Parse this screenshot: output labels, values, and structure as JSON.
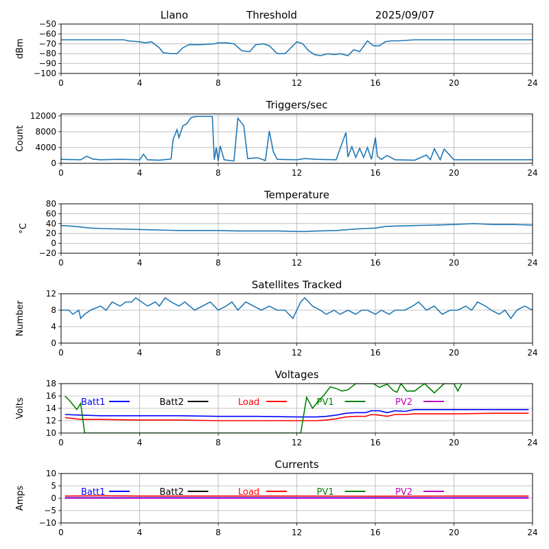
{
  "header": {
    "station": "Llano",
    "metric": "Threshold",
    "date": "2025/09/07"
  },
  "legend_labels": [
    "Batt1",
    "Batt2",
    "Load",
    "PV1",
    "PV2"
  ],
  "legend_colors": [
    "#0000ff",
    "#000000",
    "#ff0000",
    "#008000",
    "#bf00bf"
  ],
  "chart_data": [
    {
      "type": "line",
      "title": "",
      "ylabel": "dBm",
      "xlim": [
        0,
        24
      ],
      "ylim": [
        -100,
        -50
      ],
      "xticks": [
        "0",
        "4",
        "8",
        "12",
        "16",
        "20",
        "24"
      ],
      "yticks": [
        "−100",
        "−90",
        "−80",
        "−70",
        "−60",
        "−50"
      ],
      "grid": true,
      "series": [
        {
          "color": "#1f77b4",
          "x": [
            0,
            3.2,
            3.4,
            4,
            4.3,
            4.6,
            5,
            5.2,
            5.6,
            5.9,
            6.2,
            6.5,
            7,
            7.8,
            8,
            8.4,
            8.8,
            9.2,
            9.6,
            9.9,
            10.3,
            10.6,
            11,
            11.4,
            11.6,
            12,
            12.3,
            12.6,
            12.9,
            13.2,
            13.6,
            13.9,
            14.2,
            14.6,
            14.9,
            15.2,
            15.6,
            15.9,
            16.2,
            16.5,
            16.8,
            17.2,
            18,
            20,
            24
          ],
          "y": [
            -66,
            -66,
            -67,
            -68,
            -69,
            -68,
            -74,
            -79,
            -80,
            -80,
            -74,
            -71,
            -71,
            -70,
            -69,
            -69,
            -70,
            -77,
            -78,
            -71,
            -70,
            -72,
            -80,
            -80,
            -76,
            -68,
            -70,
            -77,
            -81,
            -82,
            -80,
            -81,
            -80,
            -82,
            -76,
            -78,
            -67,
            -72,
            -72,
            -68,
            -67,
            -67,
            -66,
            -66,
            -66
          ]
        }
      ]
    },
    {
      "type": "line",
      "title": "Triggers/sec",
      "ylabel": "Count",
      "xlim": [
        0,
        24
      ],
      "ylim": [
        0,
        12500
      ],
      "xticks": [
        "0",
        "4",
        "8",
        "12",
        "16",
        "20",
        "24"
      ],
      "yticks": [
        "0",
        "4000",
        "8000",
        "12000"
      ],
      "grid": true,
      "series": [
        {
          "color": "#1f77b4",
          "x": [
            0,
            1,
            1.3,
            1.6,
            2,
            3,
            4,
            4.2,
            4.4,
            5,
            5.6,
            5.7,
            5.9,
            6,
            6.2,
            6.4,
            6.6,
            6.8,
            7,
            7.2,
            7.4,
            7.6,
            7.7,
            7.8,
            7.9,
            8,
            8.1,
            8.3,
            8.6,
            8.8,
            9,
            9.3,
            9.5,
            10,
            10.4,
            10.6,
            10.8,
            11,
            12,
            12.4,
            13,
            14,
            14.5,
            14.6,
            14.8,
            15,
            15.2,
            15.4,
            15.6,
            15.8,
            16,
            16.1,
            16.3,
            16.6,
            17,
            18,
            18.6,
            18.8,
            19,
            19.3,
            19.5,
            20,
            24
          ],
          "y": [
            1000,
            900,
            1800,
            1100,
            900,
            1000,
            900,
            2300,
            900,
            800,
            1100,
            6000,
            8500,
            6500,
            9500,
            10000,
            11500,
            11800,
            11900,
            11900,
            11900,
            11900,
            11800,
            900,
            4000,
            600,
            4400,
            900,
            700,
            600,
            11400,
            9500,
            1200,
            1400,
            700,
            8200,
            3000,
            1000,
            900,
            1200,
            1000,
            900,
            7800,
            1600,
            4200,
            1500,
            3800,
            1500,
            4000,
            1000,
            6500,
            1800,
            1000,
            2000,
            900,
            800,
            2100,
            900,
            3700,
            900,
            3600,
            900,
            900
          ]
        }
      ]
    },
    {
      "type": "line",
      "title": "Temperature",
      "ylabel": "°C",
      "xlim": [
        0,
        24
      ],
      "ylim": [
        -20,
        80
      ],
      "xticks": [
        "0",
        "4",
        "8",
        "12",
        "16",
        "20",
        "24"
      ],
      "yticks": [
        "−20",
        "0",
        "20",
        "40",
        "60",
        "80"
      ],
      "grid": true,
      "series": [
        {
          "color": "#1f77b4",
          "x": [
            0,
            0.5,
            1,
            1.5,
            2,
            4,
            5,
            6,
            8,
            9,
            10,
            11,
            12,
            12.5,
            13,
            14,
            15,
            15.5,
            16,
            16.5,
            17,
            18,
            19,
            20,
            20.5,
            21,
            21.5,
            22,
            23,
            24
          ],
          "y": [
            36,
            35,
            33,
            31,
            30,
            28,
            27,
            26,
            26,
            25,
            25,
            25,
            24,
            24,
            25,
            26,
            29,
            30,
            31,
            34,
            35,
            36,
            37,
            38,
            39,
            40,
            39,
            38,
            38,
            37
          ]
        }
      ]
    },
    {
      "type": "line",
      "title": "Satellites Tracked",
      "ylabel": "Number",
      "xlim": [
        0,
        24
      ],
      "ylim": [
        0,
        12
      ],
      "xticks": [
        "0",
        "4",
        "8",
        "12",
        "16",
        "20",
        "24"
      ],
      "yticks": [
        "0",
        "4",
        "8",
        "12"
      ],
      "grid": true,
      "series": [
        {
          "color": "#1f77b4",
          "x": [
            0,
            0.4,
            0.6,
            0.9,
            1,
            1.2,
            1.5,
            2,
            2.3,
            2.6,
            3,
            3.3,
            3.6,
            3.8,
            4.1,
            4.4,
            4.8,
            5,
            5.3,
            5.6,
            6,
            6.3,
            6.8,
            7.2,
            7.6,
            8,
            8.4,
            8.7,
            9,
            9.4,
            9.8,
            10.2,
            10.6,
            11,
            11.4,
            11.6,
            11.8,
            12.2,
            12.4,
            12.8,
            13.2,
            13.5,
            13.9,
            14.2,
            14.6,
            15,
            15.3,
            15.6,
            16,
            16.3,
            16.7,
            17,
            17.5,
            17.9,
            18.2,
            18.6,
            19,
            19.4,
            19.8,
            20.2,
            20.6,
            20.9,
            21.2,
            21.6,
            21.9,
            22.3,
            22.6,
            22.9,
            23.2,
            23.6,
            24
          ],
          "y": [
            8,
            8,
            7,
            8,
            6,
            7,
            8,
            9,
            8,
            10,
            9,
            10,
            10,
            11,
            10,
            9,
            10,
            9,
            11,
            10,
            9,
            10,
            8,
            9,
            10,
            8,
            9,
            10,
            8,
            10,
            9,
            8,
            9,
            8,
            8,
            7,
            6,
            10,
            11,
            9,
            8,
            7,
            8,
            7,
            8,
            7,
            8,
            8,
            7,
            8,
            7,
            8,
            8,
            9,
            10,
            8,
            9,
            7,
            8,
            8,
            9,
            8,
            10,
            9,
            8,
            7,
            8,
            6,
            8,
            9,
            8
          ]
        }
      ]
    },
    {
      "type": "line",
      "title": "Voltages",
      "ylabel": "Volts",
      "xlim": [
        0,
        24
      ],
      "ylim": [
        10,
        18
      ],
      "xticks": [
        "0",
        "4",
        "8",
        "12",
        "16",
        "20",
        "24"
      ],
      "yticks": [
        "10",
        "12",
        "14",
        "16",
        "18"
      ],
      "grid": true,
      "series": [
        {
          "name": "Batt1",
          "color": "#0000ff",
          "x": [
            0.2,
            1,
            2,
            4,
            6,
            8,
            10,
            12,
            13,
            13.5,
            14,
            14.5,
            15,
            15.5,
            15.8,
            16.2,
            16.6,
            17,
            17.5,
            18,
            20,
            22,
            23.8
          ],
          "y": [
            13.0,
            12.9,
            12.8,
            12.8,
            12.8,
            12.7,
            12.7,
            12.6,
            12.6,
            12.7,
            12.9,
            13.2,
            13.3,
            13.3,
            13.6,
            13.6,
            13.3,
            13.6,
            13.5,
            13.8,
            13.8,
            13.8,
            13.8
          ]
        },
        {
          "name": "Load",
          "color": "#ff0000",
          "x": [
            0.2,
            1,
            2,
            4,
            6,
            8,
            10,
            12,
            13,
            13.5,
            14,
            14.5,
            15,
            15.5,
            15.8,
            16.2,
            16.6,
            17,
            17.5,
            18,
            20,
            22,
            23.8
          ],
          "y": [
            12.5,
            12.2,
            12.2,
            12.1,
            12.1,
            12.0,
            12.0,
            12.0,
            12.0,
            12.1,
            12.3,
            12.6,
            12.7,
            12.7,
            13.0,
            12.9,
            12.7,
            13.0,
            13.0,
            13.1,
            13.1,
            13.2,
            13.2
          ]
        },
        {
          "name": "PV1",
          "color": "#008000",
          "x": [
            0.2,
            0.5,
            0.8,
            1.0,
            1.2,
            11.5,
            12.2,
            12.5,
            12.8,
            13.1,
            13.4,
            13.7,
            14,
            14.3,
            14.6,
            15,
            15.5,
            15.9,
            16.2,
            16.6,
            16.9,
            17.1,
            17.3,
            17.6,
            18,
            18.5,
            19,
            19.5,
            20,
            20.2,
            20.4
          ],
          "y": [
            16,
            15,
            13.8,
            14.8,
            10,
            10,
            10,
            15.8,
            14,
            15.2,
            16.2,
            17.5,
            17.2,
            16.8,
            17.0,
            18,
            18,
            18,
            17.4,
            17.9,
            16.9,
            16.6,
            18,
            16.8,
            16.8,
            18,
            16.5,
            18,
            18,
            16.8,
            18
          ]
        }
      ],
      "legend": {
        "labels": [
          "Batt1",
          "Batt2",
          "Load",
          "PV1",
          "PV2"
        ]
      }
    },
    {
      "type": "line",
      "title": "Currents",
      "ylabel": "Amps",
      "xlim": [
        0,
        24
      ],
      "ylim": [
        -10,
        10
      ],
      "xticks": [
        "0",
        "4",
        "8",
        "12",
        "16",
        "20",
        "24"
      ],
      "yticks": [
        "−10",
        "−5",
        "0",
        "5",
        "10"
      ],
      "grid": true,
      "series": [
        {
          "name": "Load",
          "color": "#ff0000",
          "x": [
            0.2,
            2,
            4,
            8,
            12,
            16,
            20,
            23.8
          ],
          "y": [
            0.9,
            1.0,
            0.9,
            0.9,
            0.9,
            0.8,
            0.9,
            0.9
          ]
        },
        {
          "name": "Batt1",
          "color": "#0000ff",
          "x": [
            0.2,
            4,
            8,
            12,
            16,
            20,
            23.8
          ],
          "y": [
            0.2,
            0.2,
            0.2,
            0.2,
            0.2,
            0.2,
            0.2
          ]
        },
        {
          "name": "PV2",
          "color": "#bf00bf",
          "x": [
            0.2,
            4,
            8,
            12,
            16,
            20,
            23.8
          ],
          "y": [
            0.0,
            0.0,
            0.0,
            0.0,
            0.0,
            0.0,
            0.0
          ]
        }
      ],
      "legend": {
        "labels": [
          "Batt1",
          "Batt2",
          "Load",
          "PV1",
          "PV2"
        ]
      }
    }
  ]
}
